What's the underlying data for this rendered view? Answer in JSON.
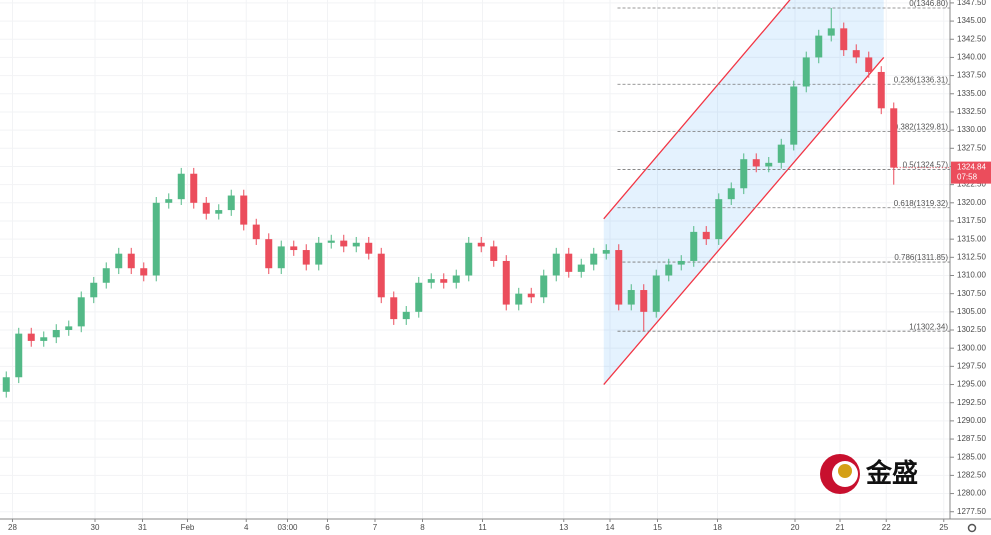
{
  "chart_data": {
    "type": "candlestick",
    "up_color": "#53b987",
    "down_color": "#eb4d5c",
    "grid": true,
    "xlim": [
      0,
      76
    ],
    "ylim": [
      1276.5,
      1347.9
    ],
    "open": [
      1294,
      1296,
      1302,
      1301,
      1301.5,
      1302.5,
      1303,
      1307,
      1309,
      1311,
      1313,
      1311,
      1310,
      1320,
      1320.5,
      1324,
      1320,
      1318.5,
      1319,
      1321,
      1317,
      1315,
      1311,
      1314,
      1313.5,
      1311.5,
      1314.5,
      1314.8,
      1314,
      1314.5,
      1313,
      1307,
      1304,
      1305,
      1309,
      1309.5,
      1309,
      1310,
      1314.5,
      1314,
      1312,
      1306,
      1307.5,
      1307,
      1310,
      1313,
      1310.5,
      1311.5,
      1313,
      1313.5,
      1306,
      1308,
      1305,
      1310,
      1311.5,
      1312,
      1316,
      1315,
      1320.5,
      1322,
      1326,
      1325,
      1325.5,
      1328,
      1336,
      1340,
      1343,
      1344,
      1341,
      1340,
      1338,
      1333
    ],
    "high": [
      1296.8,
      1302.8,
      1302.8,
      1302.3,
      1303.3,
      1303.8,
      1307.8,
      1309.8,
      1311.8,
      1313.8,
      1313.8,
      1311.8,
      1320.8,
      1321.3,
      1324.8,
      1324.8,
      1320.8,
      1319.8,
      1321.8,
      1321.8,
      1317.8,
      1315.8,
      1314.8,
      1314.8,
      1314.3,
      1315.3,
      1315.6,
      1315.6,
      1315.3,
      1315.3,
      1313.8,
      1307.8,
      1305.8,
      1309.8,
      1310.3,
      1310.3,
      1310.8,
      1315.3,
      1315.3,
      1314.8,
      1312.8,
      1308.3,
      1308.3,
      1310.8,
      1313.8,
      1313.8,
      1312.3,
      1313.8,
      1314.3,
      1314.3,
      1308.8,
      1308.8,
      1310.8,
      1312.3,
      1312.8,
      1316.8,
      1316.8,
      1321.3,
      1322.8,
      1326.8,
      1326.8,
      1326.3,
      1328.8,
      1336.8,
      1340.8,
      1343.8,
      1346.8,
      1344.8,
      1341.8,
      1340.8,
      1338.8,
      1333.8
    ],
    "low": [
      1293.2,
      1295.2,
      1300.2,
      1300.2,
      1300.7,
      1301.7,
      1302.2,
      1306.2,
      1308.2,
      1310.2,
      1310.2,
      1309.2,
      1309.2,
      1319.2,
      1319.7,
      1319.2,
      1317.7,
      1317.7,
      1318.2,
      1316.2,
      1314.2,
      1310.2,
      1310.2,
      1312.7,
      1310.7,
      1310.7,
      1313.7,
      1313.2,
      1313.2,
      1312.2,
      1306.2,
      1303.2,
      1303.2,
      1304.2,
      1308.2,
      1308.2,
      1308.2,
      1309.2,
      1313.2,
      1311.2,
      1305.2,
      1305.2,
      1306.2,
      1306.2,
      1309.2,
      1309.7,
      1309.7,
      1310.7,
      1312.2,
      1305.2,
      1305.2,
      1302.34,
      1304.2,
      1309.2,
      1310.7,
      1311.2,
      1314.2,
      1314.2,
      1319.7,
      1321.2,
      1324.2,
      1324.2,
      1324.7,
      1327.2,
      1335.2,
      1339.2,
      1342.2,
      1340.2,
      1339.2,
      1337.2,
      1332.2,
      1322.5
    ],
    "close": [
      1296,
      1302,
      1301,
      1301.5,
      1302.5,
      1303,
      1307,
      1309,
      1311,
      1313,
      1311,
      1310,
      1320,
      1320.5,
      1324,
      1320,
      1318.5,
      1319,
      1321,
      1317,
      1315,
      1311,
      1314,
      1313.5,
      1311.5,
      1314.5,
      1314.8,
      1314,
      1314.5,
      1313,
      1307,
      1304,
      1305,
      1309,
      1309.5,
      1309,
      1310,
      1314.5,
      1314,
      1312,
      1306,
      1307.5,
      1307,
      1310,
      1313,
      1310.5,
      1311.5,
      1313,
      1313.5,
      1306,
      1308,
      1305,
      1310,
      1311.5,
      1312,
      1316,
      1315,
      1320.5,
      1322,
      1326,
      1325,
      1325.5,
      1328,
      1336,
      1340,
      1343,
      1344,
      1341,
      1340,
      1338,
      1333,
      1324.84
    ],
    "xticks": [
      {
        "value": 1.0,
        "label": "28"
      },
      {
        "value": 7.6,
        "label": "30"
      },
      {
        "value": 11.4,
        "label": "31"
      },
      {
        "value": 15.0,
        "label": "Feb"
      },
      {
        "value": 19.7,
        "label": "4"
      },
      {
        "value": 23.0,
        "label": "03:00"
      },
      {
        "value": 26.2,
        "label": "6"
      },
      {
        "value": 30.0,
        "label": "7"
      },
      {
        "value": 33.8,
        "label": "8"
      },
      {
        "value": 38.6,
        "label": "11"
      },
      {
        "value": 45.1,
        "label": "13"
      },
      {
        "value": 48.8,
        "label": "14"
      },
      {
        "value": 52.6,
        "label": "15"
      },
      {
        "value": 57.4,
        "label": "18"
      },
      {
        "value": 63.6,
        "label": "20"
      },
      {
        "value": 67.2,
        "label": "21"
      },
      {
        "value": 70.9,
        "label": "22"
      },
      {
        "value": 75.5,
        "label": "25"
      }
    ],
    "yticks": [
      {
        "value": 1277.5,
        "label": "1277.50"
      },
      {
        "value": 1280,
        "label": "1280.00"
      },
      {
        "value": 1282.5,
        "label": "1282.50"
      },
      {
        "value": 1285,
        "label": "1285.00"
      },
      {
        "value": 1287.5,
        "label": "1287.50"
      },
      {
        "value": 1290,
        "label": "1290.00"
      },
      {
        "value": 1292.5,
        "label": "1292.50"
      },
      {
        "value": 1295,
        "label": "1295.00"
      },
      {
        "value": 1297.5,
        "label": "1297.50"
      },
      {
        "value": 1300,
        "label": "1300.00"
      },
      {
        "value": 1302.5,
        "label": "1302.50"
      },
      {
        "value": 1305,
        "label": "1305.00"
      },
      {
        "value": 1307.5,
        "label": "1307.50"
      },
      {
        "value": 1310,
        "label": "1310.00"
      },
      {
        "value": 1312.5,
        "label": "1312.50"
      },
      {
        "value": 1315,
        "label": "1315.00"
      },
      {
        "value": 1317.5,
        "label": "1317.50"
      },
      {
        "value": 1320,
        "label": "1320.00"
      },
      {
        "value": 1322.5,
        "label": "1322.50"
      },
      {
        "value": 1325,
        "label": "1325.00"
      },
      {
        "value": 1327.5,
        "label": "1327.50"
      },
      {
        "value": 1330,
        "label": "1330.00"
      },
      {
        "value": 1332.5,
        "label": "1332.50"
      },
      {
        "value": 1335,
        "label": "1335.00"
      },
      {
        "value": 1337.5,
        "label": "1337.50"
      },
      {
        "value": 1340,
        "label": "1340.00"
      },
      {
        "value": 1342.5,
        "label": "1342.50"
      },
      {
        "value": 1345,
        "label": "1345.00"
      },
      {
        "value": 1347.5,
        "label": "1347.50"
      }
    ],
    "fib_start": 49.4,
    "fib_levels": [
      {
        "value": 1346.8,
        "label": "0(1346.80)"
      },
      {
        "value": 1336.31,
        "label": "0.236(1336.31)"
      },
      {
        "value": 1329.81,
        "label": "0.382(1329.81)"
      },
      {
        "value": 1324.57,
        "label": "0.5(1324.57)"
      },
      {
        "value": 1319.32,
        "label": "0.618(1319.32)"
      },
      {
        "value": 1311.85,
        "label": "0.786(1311.85)"
      },
      {
        "value": 1302.34,
        "label": "1(1302.34)"
      }
    ],
    "channel": {
      "x": [
        48.3,
        70.7
      ],
      "upper": [
        1317.8,
        1363.1
      ],
      "lower": [
        1295.0,
        1340.0
      ],
      "color": "#f23645"
    },
    "last_price": {
      "value": 1324.84,
      "label": "1324.84"
    },
    "countdown": "07:58",
    "logo": "金盛"
  }
}
